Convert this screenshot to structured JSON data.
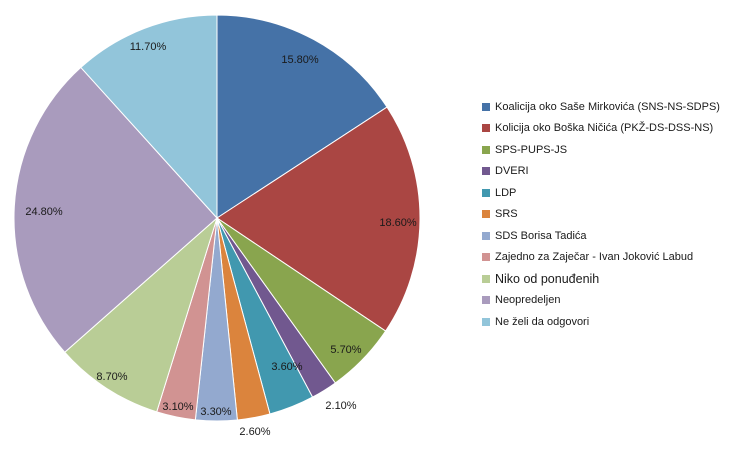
{
  "chart_data": {
    "type": "pie",
    "categories": [
      "Koalicija oko Saše Mirkovića (SNS-NS-SDPS)",
      "Kolicija oko Boška Ničića (PKŽ-DS-DSS-NS)",
      "SPS-PUPS-JS",
      "DVERI",
      "LDP",
      "SRS",
      "SDS Borisa Tadića",
      "Zajedno za Zaječar - Ivan Joković Labud",
      "Niko od ponuđenih",
      "Neopredeljen",
      "Ne želi da odgovori"
    ],
    "values": [
      15.8,
      18.6,
      5.7,
      2.1,
      3.6,
      2.6,
      3.3,
      3.1,
      8.7,
      24.8,
      11.7
    ],
    "labels": [
      "15.80%",
      "18.60%",
      "5.70%",
      "2.10%",
      "3.60%",
      "2.60%",
      "3.30%",
      "3.10%",
      "8.70%",
      "24.80%",
      "11.70%"
    ],
    "colors": [
      "#4572A7",
      "#AA4643",
      "#89A54E",
      "#71588F",
      "#4198AF",
      "#DB843D",
      "#93A9CF",
      "#D19392",
      "#B9CD96",
      "#A99BBD",
      "#92C5DA"
    ],
    "legend_placement": "right",
    "start_angle": "12 o'clock, clockwise"
  }
}
